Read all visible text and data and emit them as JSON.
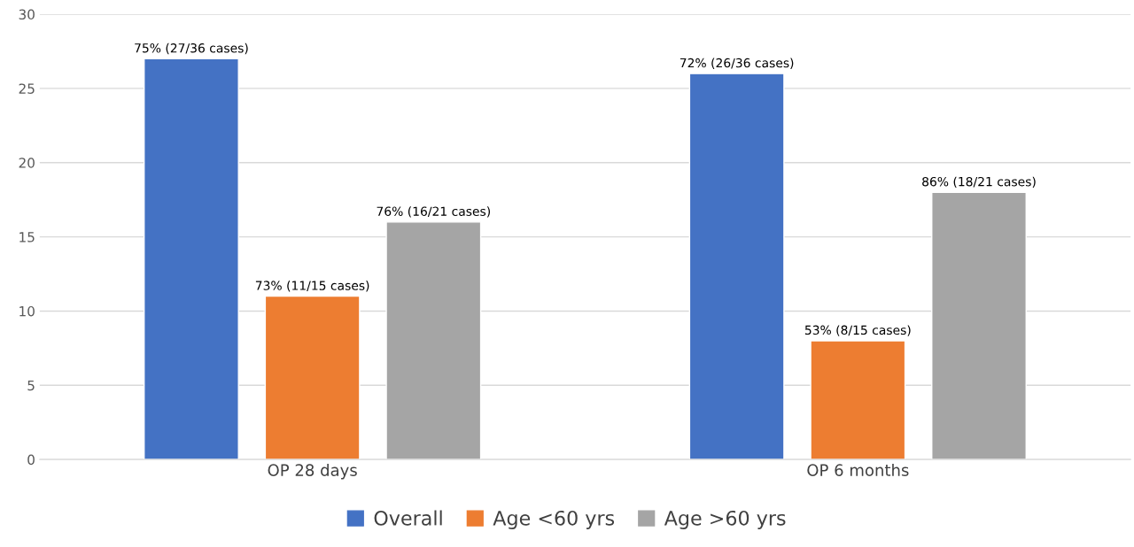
{
  "chart_data": {
    "type": "bar",
    "categories": [
      "OP 28 days",
      "OP 6 months"
    ],
    "series": [
      {
        "name": "Overall",
        "color": "#4472c4",
        "values": [
          27,
          26
        ],
        "value_labels": [
          "75% (27/36 cases)",
          "72% (26/36 cases)"
        ]
      },
      {
        "name": "Age <60 yrs",
        "color": "#ed7d31",
        "values": [
          11,
          8
        ],
        "value_labels": [
          "73% (11/15 cases)",
          "53% (8/15 cases)"
        ]
      },
      {
        "name": "Age >60 yrs",
        "color": "#a5a5a5",
        "values": [
          16,
          18
        ],
        "value_labels": [
          "76% (16/21 cases)",
          "86% (18/21 cases)"
        ]
      }
    ],
    "ylim": [
      0,
      30
    ],
    "yticks": [
      0,
      5,
      10,
      15,
      20,
      25,
      30
    ],
    "grid": "y",
    "legend": "bottom"
  }
}
